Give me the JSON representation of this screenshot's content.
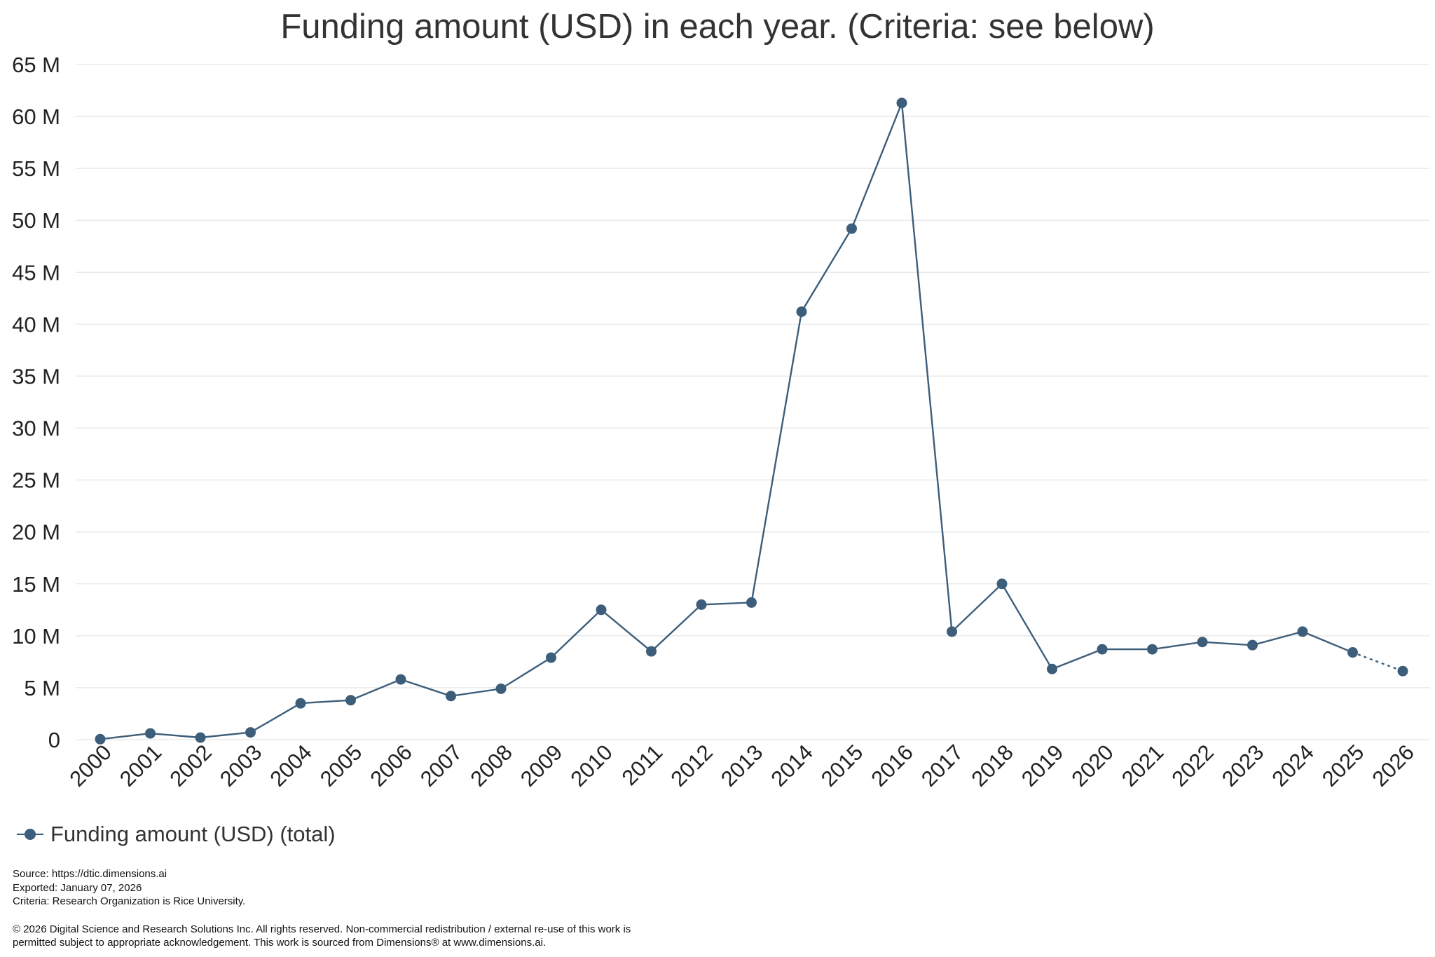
{
  "chart_data": {
    "type": "line",
    "title": "Funding amount (USD) in each year. (Criteria: see below)",
    "xlabel": "",
    "ylabel": "",
    "categories": [
      "2000",
      "2001",
      "2002",
      "2003",
      "2004",
      "2005",
      "2006",
      "2007",
      "2008",
      "2009",
      "2010",
      "2011",
      "2012",
      "2013",
      "2014",
      "2015",
      "2016",
      "2017",
      "2018",
      "2019",
      "2020",
      "2021",
      "2022",
      "2023",
      "2024",
      "2025",
      "2026"
    ],
    "series": [
      {
        "name": "Funding amount (USD) (total)",
        "color": "#3d5e7a",
        "values": [
          0.05,
          0.6,
          0.2,
          0.7,
          3.5,
          3.8,
          5.8,
          4.2,
          4.9,
          7.9,
          12.5,
          8.5,
          13.0,
          13.2,
          41.2,
          49.2,
          61.3,
          10.4,
          15.0,
          6.8,
          8.7,
          8.7,
          9.4,
          9.1,
          10.4,
          8.4,
          6.6
        ],
        "projected_from": "2025"
      }
    ],
    "ylim": [
      0,
      65
    ],
    "yticks": [
      0,
      5,
      10,
      15,
      20,
      25,
      30,
      35,
      40,
      45,
      50,
      55,
      60,
      65
    ],
    "ytick_labels": [
      "0",
      "5 M",
      "10 M",
      "15 M",
      "20 M",
      "25 M",
      "30 M",
      "35 M",
      "40 M",
      "45 M",
      "50 M",
      "55 M",
      "60 M",
      "65 M"
    ],
    "grid": true,
    "legend_position": "bottom-left"
  },
  "legend": {
    "label": "Funding amount (USD) (total)"
  },
  "footer": {
    "source": "Source: https://dtic.dimensions.ai",
    "exported": "Exported: January 07, 2026",
    "criteria": "Criteria: Research Organization is Rice University.",
    "copyright_line1": "© 2026 Digital Science and Research Solutions Inc. All rights reserved. Non-commercial redistribution / external re-use of this work is",
    "copyright_line2": "permitted subject to appropriate acknowledgement. This work is sourced from Dimensions® at www.dimensions.ai."
  }
}
